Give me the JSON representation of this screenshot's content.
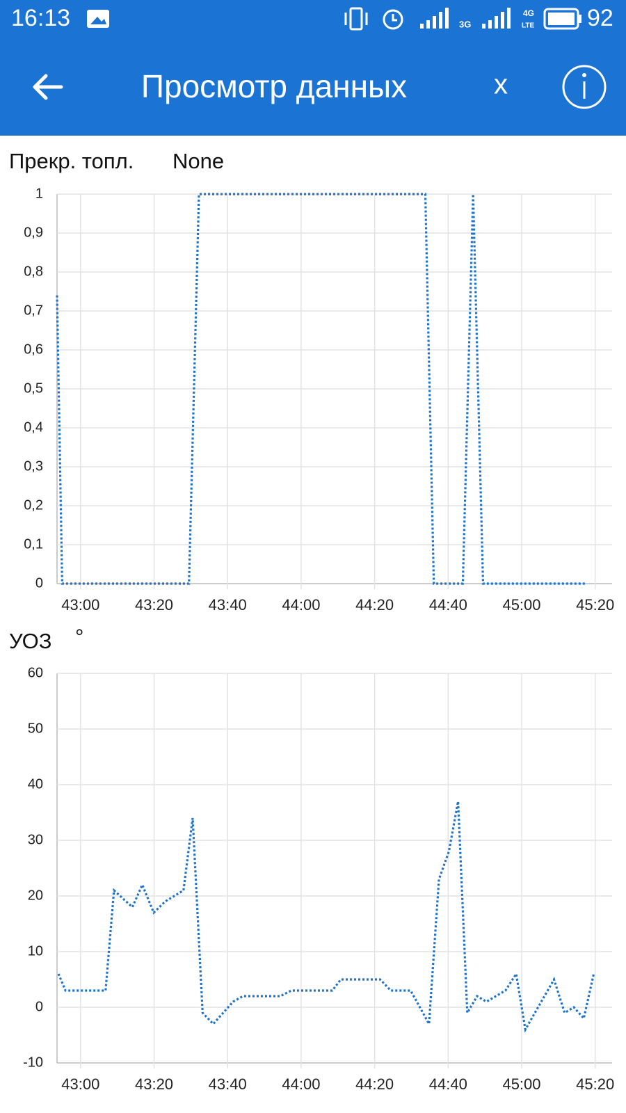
{
  "status_bar": {
    "time": "16:13",
    "network_1": "3G",
    "network_2": "4G",
    "network_2_sub": "LTE",
    "battery": "92"
  },
  "app_bar": {
    "title": "Просмотр данных",
    "action": "x"
  },
  "chart_data": [
    {
      "type": "line",
      "title": "Прекр. топл.",
      "unit": "None",
      "color": "#1f73c9",
      "grid": true,
      "x": [
        2573.6,
        2575.0,
        2609.5,
        2612.2,
        2673.8,
        2676.1,
        2684.0,
        2686.8,
        2689.5,
        2717.6
      ],
      "values": [
        0.74,
        0,
        0,
        1,
        1,
        0,
        0,
        1,
        0,
        0
      ],
      "xlim": [
        2573.6,
        2724.6
      ],
      "ylim": [
        0,
        1
      ],
      "xticks": [
        {
          "value": 2580,
          "label": "43:00"
        },
        {
          "value": 2600,
          "label": "43:20"
        },
        {
          "value": 2620,
          "label": "43:40"
        },
        {
          "value": 2640,
          "label": "44:00"
        },
        {
          "value": 2660,
          "label": "44:20"
        },
        {
          "value": 2680,
          "label": "44:40"
        },
        {
          "value": 2700,
          "label": "45:00"
        },
        {
          "value": 2720,
          "label": "45:20"
        }
      ],
      "yticks": [
        0,
        {
          "value": 0.1,
          "label": "0,1"
        },
        {
          "value": 0.2,
          "label": "0,2"
        },
        {
          "value": 0.3,
          "label": "0,3"
        },
        {
          "value": 0.4,
          "label": "0,4"
        },
        {
          "value": 0.5,
          "label": "0,5"
        },
        {
          "value": 0.6,
          "label": "0,6"
        },
        {
          "value": 0.7,
          "label": "0,7"
        },
        {
          "value": 0.8,
          "label": "0,8"
        },
        {
          "value": 0.9,
          "label": "0,9"
        },
        1
      ]
    },
    {
      "type": "line",
      "title": "УОЗ",
      "unit": "°",
      "color": "#1f73c9",
      "grid": true,
      "x": [
        2574.0,
        2575.9,
        2586.8,
        2589.1,
        2594.1,
        2596.8,
        2599.9,
        2603.0,
        2608.0,
        2610.5,
        2613.2,
        2616.1,
        2621.5,
        2624.2,
        2634.4,
        2637.3,
        2648.5,
        2650.8,
        2661.5,
        2664.4,
        2669.8,
        2674.8,
        2677.5,
        2680.2,
        2682.7,
        2685.2,
        2687.9,
        2690.4,
        2695.6,
        2698.5,
        2701.0,
        2708.8,
        2711.7,
        2714.2,
        2716.9,
        2719.6
      ],
      "values": [
        6,
        3,
        3,
        21,
        18,
        22,
        17,
        19,
        21,
        34,
        -1,
        -3,
        1,
        2,
        2,
        3,
        3,
        5,
        5,
        3,
        3,
        -3,
        23,
        28,
        37,
        -1,
        2,
        1,
        3,
        6,
        -4,
        5,
        -1,
        0,
        -2,
        6
      ],
      "xlim": [
        2573.6,
        2724.6
      ],
      "ylim": [
        -10,
        60
      ],
      "xticks": [
        {
          "value": 2580,
          "label": "43:00"
        },
        {
          "value": 2600,
          "label": "43:20"
        },
        {
          "value": 2620,
          "label": "43:40"
        },
        {
          "value": 2640,
          "label": "44:00"
        },
        {
          "value": 2660,
          "label": "44:20"
        },
        {
          "value": 2680,
          "label": "44:40"
        },
        {
          "value": 2700,
          "label": "45:00"
        },
        {
          "value": 2720,
          "label": "45:20"
        }
      ],
      "yticks": [
        -10,
        0,
        10,
        20,
        30,
        40,
        50,
        60
      ]
    }
  ]
}
